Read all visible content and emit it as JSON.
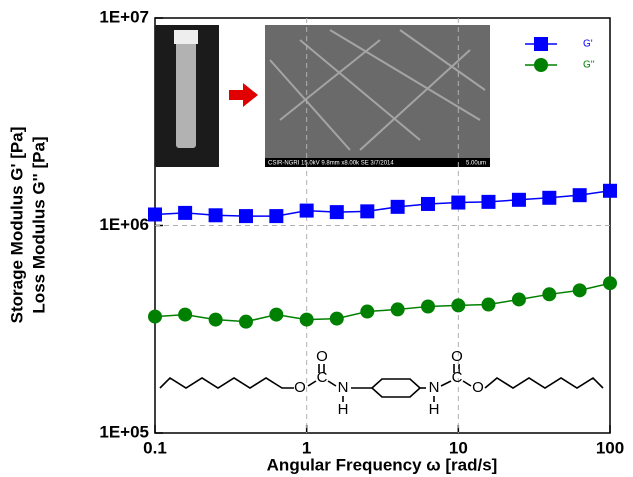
{
  "chart_data": {
    "type": "line",
    "x": [
      0.1,
      0.158,
      0.251,
      0.398,
      0.631,
      1,
      1.58,
      2.51,
      3.98,
      6.31,
      10,
      15.8,
      25.1,
      39.8,
      63.1,
      100
    ],
    "series": [
      {
        "name": "G'",
        "color": "#0000ff",
        "marker": "square",
        "values": [
          1130000,
          1150000,
          1120000,
          1110000,
          1110000,
          1180000,
          1160000,
          1170000,
          1230000,
          1270000,
          1290000,
          1300000,
          1330000,
          1360000,
          1400000,
          1470000
        ]
      },
      {
        "name": "G''",
        "color": "#008000",
        "marker": "circle",
        "values": [
          364000,
          372000,
          352000,
          344000,
          372000,
          352000,
          356000,
          385000,
          394000,
          407000,
          412000,
          416000,
          440000,
          466000,
          487000,
          527000
        ]
      }
    ],
    "xlabel": "Angular Frequency ω [rad/s]",
    "ylabel": [
      "Storage Modulus G' [Pa]",
      "Loss Modulus G'' [Pa]"
    ],
    "xscale": "log",
    "yscale": "log",
    "xlim": [
      0.1,
      100
    ],
    "ylim": [
      100000,
      10000000
    ],
    "xticks": [
      0.1,
      1,
      10,
      100
    ],
    "yticks": [
      {
        "value": 100000,
        "label": "1E+05"
      },
      {
        "value": 1000000,
        "label": "1E+06"
      },
      {
        "value": 10000000,
        "label": "1E+07"
      }
    ],
    "grid": true,
    "legend": "upper right",
    "annotations": {
      "sem_caption": "CSIR-NGRI 15.0kV 9.8mm x8.00k SE 3/7/2014",
      "sem_scale": "5.00um",
      "structure_labels": [
        "O",
        "C",
        "O",
        "N",
        "H",
        "N",
        "H",
        "C",
        "O",
        "O"
      ]
    }
  }
}
